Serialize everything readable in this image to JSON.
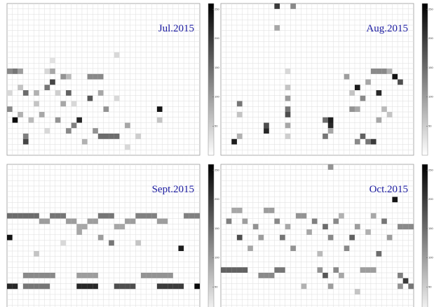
{
  "chart_data": [
    {
      "type": "heatmap",
      "title": "Jul.2015",
      "zlim": [
        0,
        260
      ],
      "zticks": [
        50,
        100,
        150,
        200,
        250
      ],
      "cells": [
        [
          0,
          12,
          120
        ],
        [
          1,
          12,
          140
        ],
        [
          2,
          12,
          100
        ],
        [
          7,
          12,
          40
        ],
        [
          8,
          12,
          90
        ],
        [
          10,
          13,
          110
        ],
        [
          11,
          13,
          70
        ],
        [
          15,
          13,
          120
        ],
        [
          16,
          13,
          120
        ],
        [
          17,
          13,
          120
        ],
        [
          20,
          9,
          40
        ],
        [
          8,
          10,
          30
        ],
        [
          2,
          15,
          60
        ],
        [
          3,
          16,
          150
        ],
        [
          5,
          16,
          80
        ],
        [
          7,
          15,
          140
        ],
        [
          8,
          14,
          190
        ],
        [
          11,
          16,
          160
        ],
        [
          12,
          18,
          40
        ],
        [
          15,
          17,
          170
        ],
        [
          17,
          16,
          90
        ],
        [
          18,
          19,
          110
        ],
        [
          20,
          17,
          40
        ],
        [
          0,
          19,
          120
        ],
        [
          2,
          20,
          80
        ],
        [
          4,
          21,
          70
        ],
        [
          6,
          20,
          90
        ],
        [
          9,
          21,
          110
        ],
        [
          10,
          18,
          90
        ],
        [
          12,
          22,
          130
        ],
        [
          13,
          21,
          220
        ],
        [
          16,
          23,
          110
        ],
        [
          17,
          24,
          150
        ],
        [
          18,
          24,
          150
        ],
        [
          19,
          24,
          150
        ],
        [
          20,
          24,
          150
        ],
        [
          22,
          22,
          90
        ],
        [
          24,
          24,
          50
        ],
        [
          28,
          19,
          240
        ],
        [
          28,
          21,
          60
        ],
        [
          3,
          24,
          130
        ],
        [
          3,
          25,
          190
        ],
        [
          7,
          23,
          40
        ],
        [
          0,
          16,
          40
        ],
        [
          1,
          21,
          250
        ],
        [
          5,
          18,
          60
        ],
        [
          9,
          16,
          50
        ],
        [
          11,
          23,
          120
        ],
        [
          22,
          26,
          40
        ],
        [
          14,
          25,
          80
        ]
      ]
    },
    {
      "type": "heatmap",
      "title": "Aug.2015",
      "zlim": [
        0,
        260
      ],
      "zticks": [
        50,
        100,
        150,
        200,
        250
      ],
      "cells": [
        [
          10,
          0,
          200
        ],
        [
          13,
          0,
          120
        ],
        [
          10,
          4,
          90
        ],
        [
          12,
          12,
          40
        ],
        [
          12,
          15,
          60
        ],
        [
          12,
          17,
          100
        ],
        [
          12,
          19,
          140
        ],
        [
          12,
          20,
          180
        ],
        [
          12,
          22,
          90
        ],
        [
          12,
          24,
          50
        ],
        [
          3,
          18,
          140
        ],
        [
          3,
          20,
          60
        ],
        [
          3,
          24,
          80
        ],
        [
          2,
          25,
          230
        ],
        [
          8,
          22,
          180
        ],
        [
          8,
          23,
          220
        ],
        [
          19,
          21,
          150
        ],
        [
          20,
          21,
          230
        ],
        [
          20,
          22,
          220
        ],
        [
          20,
          23,
          90
        ],
        [
          19,
          24,
          140
        ],
        [
          24,
          19,
          110
        ],
        [
          25,
          19,
          90
        ],
        [
          25,
          25,
          120
        ],
        [
          26,
          24,
          160
        ],
        [
          27,
          25,
          140
        ],
        [
          28,
          25,
          200
        ],
        [
          26,
          17,
          120
        ],
        [
          25,
          15,
          230
        ],
        [
          27,
          14,
          90
        ],
        [
          28,
          12,
          120
        ],
        [
          29,
          12,
          120
        ],
        [
          30,
          12,
          120
        ],
        [
          31,
          12,
          80
        ],
        [
          29,
          16,
          220
        ],
        [
          32,
          13,
          240
        ],
        [
          33,
          14,
          180
        ],
        [
          30,
          19,
          70
        ],
        [
          31,
          20,
          60
        ],
        [
          29,
          21,
          90
        ],
        [
          23,
          13,
          100
        ],
        [
          24,
          16,
          60
        ]
      ]
    },
    {
      "type": "heatmap",
      "title": "Sept.2015",
      "zlim": [
        0,
        260
      ],
      "zticks": [
        50,
        100,
        150,
        200,
        250
      ],
      "cells": [
        [
          0,
          9,
          150
        ],
        [
          1,
          9,
          150
        ],
        [
          2,
          9,
          150
        ],
        [
          3,
          9,
          150
        ],
        [
          4,
          9,
          150
        ],
        [
          5,
          9,
          150
        ],
        [
          8,
          9,
          140
        ],
        [
          9,
          9,
          140
        ],
        [
          10,
          9,
          140
        ],
        [
          17,
          9,
          140
        ],
        [
          18,
          9,
          140
        ],
        [
          19,
          9,
          140
        ],
        [
          24,
          9,
          130
        ],
        [
          25,
          9,
          130
        ],
        [
          26,
          9,
          130
        ],
        [
          27,
          9,
          130
        ],
        [
          33,
          9,
          130
        ],
        [
          34,
          9,
          130
        ],
        [
          35,
          9,
          130
        ],
        [
          6,
          10,
          100
        ],
        [
          7,
          10,
          100
        ],
        [
          11,
          10,
          100
        ],
        [
          12,
          10,
          100
        ],
        [
          15,
          10,
          100
        ],
        [
          16,
          10,
          100
        ],
        [
          22,
          10,
          100
        ],
        [
          23,
          10,
          100
        ],
        [
          28,
          10,
          100
        ],
        [
          29,
          10,
          100
        ],
        [
          13,
          11,
          90
        ],
        [
          14,
          11,
          90
        ],
        [
          20,
          11,
          90
        ],
        [
          21,
          11,
          90
        ],
        [
          0,
          13,
          240
        ],
        [
          32,
          15,
          230
        ],
        [
          19,
          14,
          140
        ],
        [
          17,
          13,
          100
        ],
        [
          13,
          12,
          90
        ],
        [
          5,
          16,
          60
        ],
        [
          24,
          14,
          60
        ],
        [
          10,
          14,
          40
        ],
        [
          3,
          20,
          120
        ],
        [
          4,
          20,
          120
        ],
        [
          5,
          20,
          120
        ],
        [
          6,
          20,
          120
        ],
        [
          7,
          20,
          120
        ],
        [
          8,
          20,
          120
        ],
        [
          13,
          20,
          100
        ],
        [
          14,
          20,
          100
        ],
        [
          15,
          20,
          100
        ],
        [
          16,
          20,
          100
        ],
        [
          25,
          20,
          110
        ],
        [
          26,
          20,
          110
        ],
        [
          27,
          20,
          110
        ],
        [
          28,
          20,
          110
        ],
        [
          29,
          20,
          110
        ],
        [
          30,
          20,
          110
        ],
        [
          0,
          22,
          220
        ],
        [
          1,
          22,
          220
        ],
        [
          3,
          22,
          140
        ],
        [
          4,
          22,
          140
        ],
        [
          5,
          22,
          140
        ],
        [
          6,
          22,
          140
        ],
        [
          7,
          22,
          140
        ],
        [
          13,
          22,
          220
        ],
        [
          14,
          22,
          220
        ],
        [
          15,
          22,
          220
        ],
        [
          16,
          22,
          220
        ],
        [
          20,
          22,
          180
        ],
        [
          21,
          22,
          180
        ],
        [
          22,
          22,
          180
        ],
        [
          23,
          22,
          180
        ],
        [
          28,
          22,
          200
        ],
        [
          29,
          22,
          200
        ],
        [
          30,
          22,
          200
        ],
        [
          31,
          22,
          200
        ],
        [
          32,
          22,
          200
        ],
        [
          35,
          22,
          250
        ]
      ]
    },
    {
      "type": "heatmap",
      "title": "Oct.2015",
      "zlim": [
        0,
        260
      ],
      "zticks": [
        50,
        100,
        150,
        200,
        250
      ],
      "cells": [
        [
          20,
          0,
          110
        ],
        [
          32,
          6,
          240
        ],
        [
          2,
          8,
          90
        ],
        [
          3,
          8,
          90
        ],
        [
          8,
          8,
          100
        ],
        [
          9,
          8,
          100
        ],
        [
          14,
          9,
          110
        ],
        [
          15,
          9,
          110
        ],
        [
          22,
          9,
          80
        ],
        [
          28,
          9,
          90
        ],
        [
          1,
          10,
          130
        ],
        [
          4,
          10,
          100
        ],
        [
          6,
          11,
          110
        ],
        [
          10,
          10,
          120
        ],
        [
          12,
          11,
          90
        ],
        [
          17,
          10,
          130
        ],
        [
          19,
          11,
          150
        ],
        [
          21,
          10,
          120
        ],
        [
          25,
          11,
          100
        ],
        [
          30,
          10,
          140
        ],
        [
          33,
          11,
          120
        ],
        [
          34,
          11,
          120
        ],
        [
          35,
          11,
          120
        ],
        [
          3,
          13,
          180
        ],
        [
          7,
          13,
          100
        ],
        [
          11,
          13,
          140
        ],
        [
          16,
          12,
          90
        ],
        [
          20,
          13,
          120
        ],
        [
          24,
          13,
          160
        ],
        [
          27,
          12,
          80
        ],
        [
          31,
          13,
          100
        ],
        [
          5,
          15,
          90
        ],
        [
          13,
          15,
          110
        ],
        [
          18,
          16,
          70
        ],
        [
          23,
          15,
          120
        ],
        [
          29,
          16,
          150
        ],
        [
          0,
          19,
          160
        ],
        [
          1,
          19,
          160
        ],
        [
          2,
          19,
          160
        ],
        [
          3,
          19,
          160
        ],
        [
          4,
          19,
          160
        ],
        [
          7,
          20,
          120
        ],
        [
          8,
          20,
          120
        ],
        [
          9,
          20,
          120
        ],
        [
          10,
          19,
          140
        ],
        [
          11,
          19,
          140
        ],
        [
          18,
          19,
          110
        ],
        [
          19,
          20,
          170
        ],
        [
          21,
          19,
          120
        ],
        [
          22,
          20,
          90
        ],
        [
          26,
          19,
          100
        ],
        [
          27,
          19,
          100
        ],
        [
          28,
          19,
          100
        ],
        [
          33,
          20,
          130
        ],
        [
          34,
          21,
          200
        ],
        [
          35,
          22,
          140
        ],
        [
          33,
          22,
          110
        ],
        [
          15,
          22,
          80
        ],
        [
          20,
          22,
          100
        ],
        [
          25,
          23,
          60
        ]
      ]
    }
  ]
}
